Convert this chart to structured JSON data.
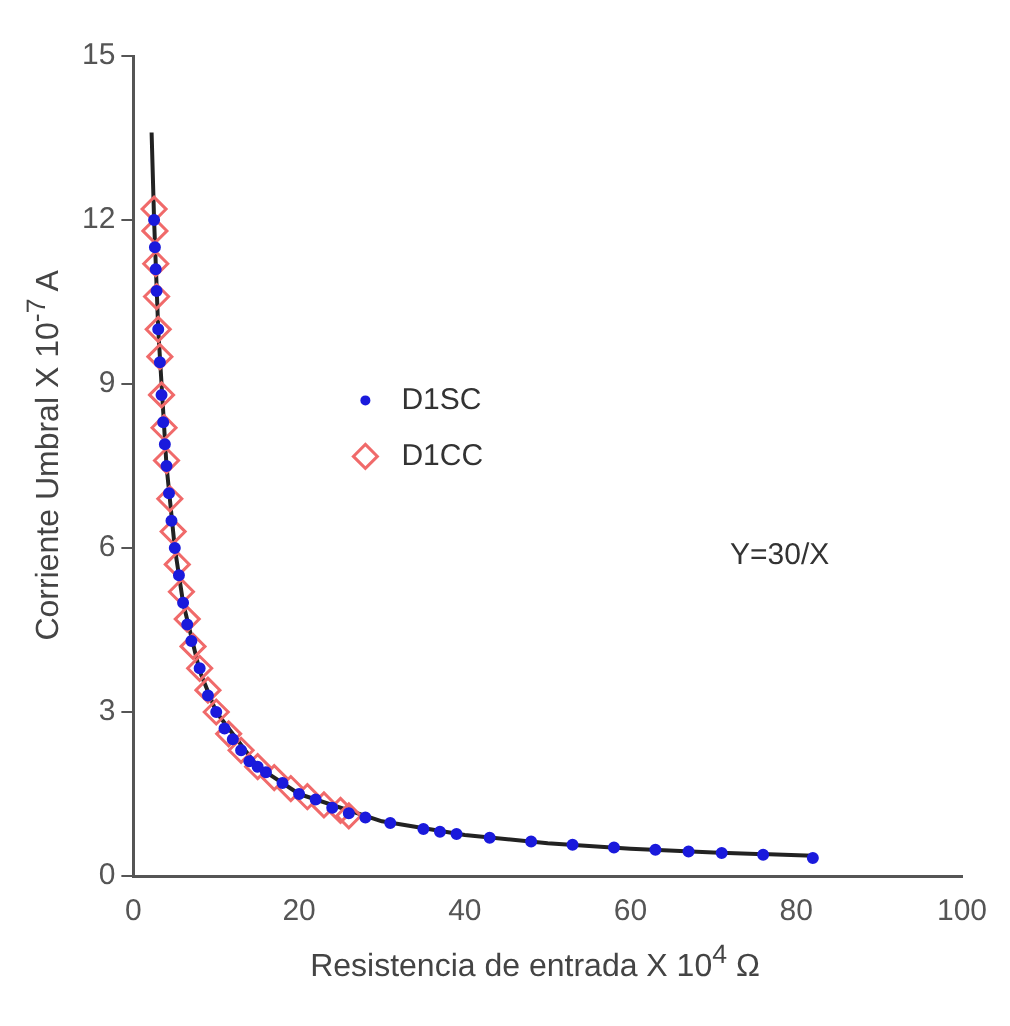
{
  "chart_data": {
    "type": "scatter",
    "xlabel": "Resistencia de entrada X 10$^{4}$ Ω",
    "ylabel": "Corriente Umbral X 10$^{-7}$ A",
    "xlim": [
      0,
      100
    ],
    "xticks": [
      0,
      20,
      40,
      60,
      80,
      100
    ],
    "ylim": [
      0,
      15
    ],
    "yticks": [
      0,
      3,
      6,
      9,
      12,
      15
    ],
    "grid": false,
    "legend": "center",
    "annotations": [
      "Y=30/X"
    ],
    "series": [
      {
        "name": "D1SC",
        "color": "#1a1adc",
        "marker": "circle",
        "x": [
          2.5,
          2.6,
          2.7,
          2.8,
          3,
          3.2,
          3.4,
          3.6,
          3.8,
          4,
          4.3,
          4.6,
          5,
          5.5,
          6,
          6.5,
          7,
          8,
          9,
          10,
          11,
          12,
          13,
          14,
          15,
          16,
          18,
          20,
          22,
          24,
          26,
          28,
          31,
          35,
          37,
          39,
          43,
          48,
          53,
          58,
          63,
          67,
          71,
          76,
          82
        ],
        "values": [
          12.0,
          11.5,
          11.1,
          10.7,
          10.0,
          9.4,
          8.8,
          8.3,
          7.9,
          7.5,
          7.0,
          6.5,
          6.0,
          5.5,
          5.0,
          4.6,
          4.3,
          3.8,
          3.3,
          3.0,
          2.7,
          2.5,
          2.3,
          2.1,
          2.0,
          1.9,
          1.7,
          1.5,
          1.4,
          1.25,
          1.15,
          1.07,
          0.97,
          0.86,
          0.81,
          0.77,
          0.7,
          0.63,
          0.57,
          0.52,
          0.48,
          0.45,
          0.42,
          0.39,
          0.33
        ]
      },
      {
        "name": "D1CC",
        "color": "#f06a6a",
        "marker": "diamond",
        "x": [
          2.5,
          2.6,
          2.7,
          2.8,
          3,
          3.2,
          3.4,
          3.7,
          4,
          4.4,
          4.8,
          5.3,
          5.8,
          6.5,
          7.2,
          8,
          9,
          10,
          11.5,
          13,
          15,
          17,
          19,
          21,
          23,
          25,
          26
        ],
        "values": [
          12.2,
          11.8,
          11.2,
          10.6,
          10.0,
          9.5,
          8.8,
          8.2,
          7.6,
          6.9,
          6.3,
          5.7,
          5.2,
          4.7,
          4.2,
          3.8,
          3.4,
          3.0,
          2.6,
          2.3,
          2.0,
          1.8,
          1.6,
          1.45,
          1.3,
          1.2,
          1.1
        ]
      },
      {
        "type": "line",
        "color": "#222222",
        "marker": "none",
        "x": [
          2.2,
          2.5,
          3,
          4,
          5,
          6,
          8,
          10,
          15,
          20,
          30,
          40,
          50,
          60,
          70,
          82
        ],
        "values": [
          13.6,
          12,
          10,
          7.5,
          6,
          5,
          3.75,
          3,
          2,
          1.5,
          1,
          0.75,
          0.6,
          0.5,
          0.43,
          0.37
        ]
      }
    ]
  }
}
